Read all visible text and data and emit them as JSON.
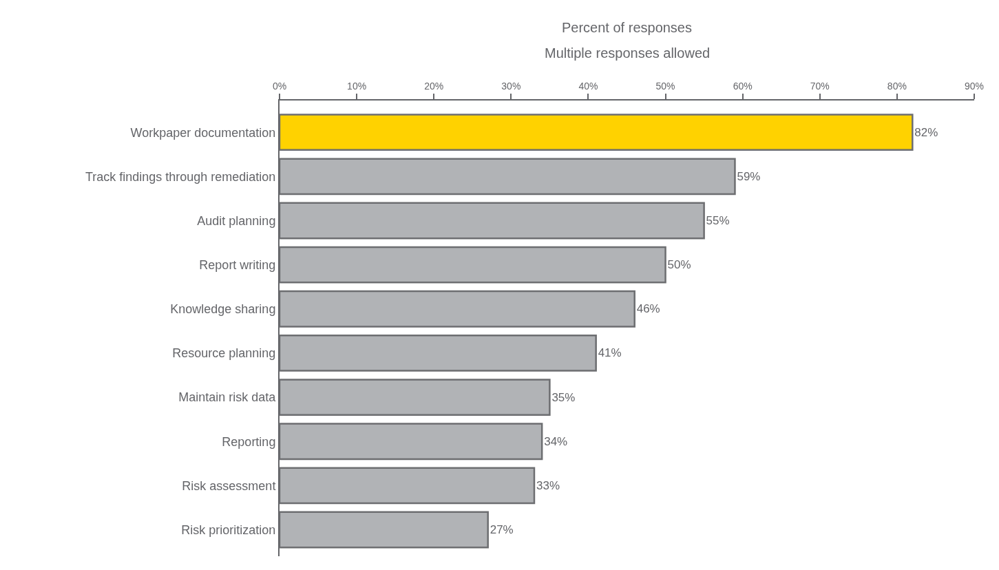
{
  "chart_data": {
    "type": "bar",
    "orientation": "horizontal",
    "title": "Percent of responses",
    "subtitle": "Multiple responses allowed",
    "categories": [
      "Workpaper documentation",
      "Track findings through remediation",
      "Audit planning",
      "Report writing",
      "Knowledge sharing",
      "Resource planning",
      "Maintain risk data",
      "Reporting",
      "Risk assessment",
      "Risk prioritization"
    ],
    "values": [
      82,
      59,
      55,
      50,
      46,
      41,
      35,
      34,
      33,
      27
    ],
    "colors": [
      "#ffd200",
      "#b1b3b6",
      "#b1b3b6",
      "#b1b3b6",
      "#b1b3b6",
      "#b1b3b6",
      "#b1b3b6",
      "#b1b3b6",
      "#b1b3b6",
      "#b1b3b6"
    ],
    "value_labels": [
      "82%",
      "59%",
      "55%",
      "50%",
      "46%",
      "41%",
      "35%",
      "34%",
      "33%",
      "27%"
    ],
    "xlim": [
      0,
      90
    ],
    "xticks": [
      {
        "value": 0,
        "label": "0%"
      },
      {
        "value": 10,
        "label": "10%"
      },
      {
        "value": 20,
        "label": "20%"
      },
      {
        "value": 30,
        "label": "30%"
      },
      {
        "value": 40,
        "label": "40%"
      },
      {
        "value": 50,
        "label": "50%"
      },
      {
        "value": 60,
        "label": "60%"
      },
      {
        "value": 70,
        "label": "70%"
      },
      {
        "value": 80,
        "label": "80%"
      },
      {
        "value": 90,
        "label": "90%"
      }
    ],
    "legend": false
  }
}
